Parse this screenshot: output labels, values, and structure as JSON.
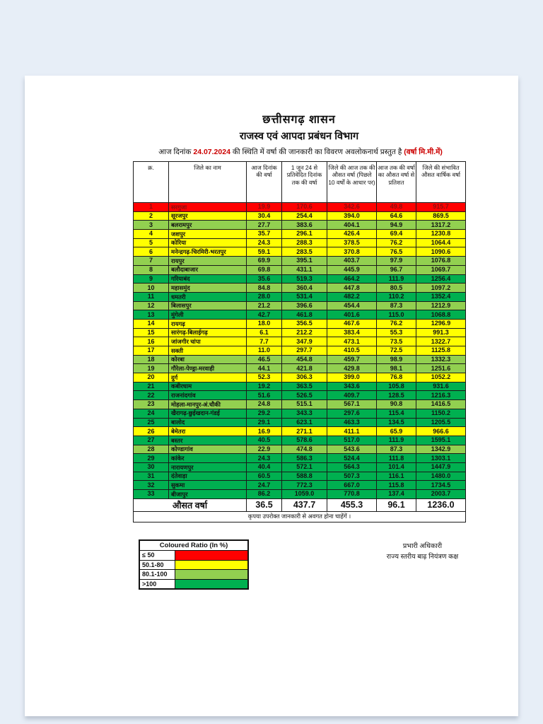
{
  "colors": {
    "red": "#ff0000",
    "yellow": "#ffff00",
    "lightgreen": "#92d050",
    "green": "#00b050",
    "accent_red": "#cc0000",
    "red_row_text": "#8b0e0e",
    "page_bg": "#ffffff",
    "viewer_bg": "#e7eef7"
  },
  "doc": {
    "title1": "छत्तीसगढ़ शासन",
    "title2": "राजस्व एवं आपदा प्रबंधन विभाग",
    "dateline": {
      "prefix": "आज दिनांक ",
      "date": "24.07.2024",
      "middle": " की स्थिति में वर्षा की जानकारी का विवरण अवलोकनार्थ प्रस्तुत है  ",
      "unit": "(वर्षा मि.मी.में)"
    }
  },
  "table": {
    "headers": [
      "क्र.",
      "जिले का नाम",
      "आज दिनांक की वर्षा",
      "1 जून 24 से प्रतिवेदित दिनांक तक की वर्षा",
      "जिले की आज तक की औसत वर्षा (पिछले 10 वर्षों के आधार पर)",
      "आज तक की वर्षा का औसत वर्षा से प्रतिशत",
      "जिले की संभावित औसत वार्षिक वर्षा"
    ],
    "rows": [
      {
        "sno": "1",
        "district": "सरगुजा",
        "today_rain": "19.9",
        "since_june1": "170.6",
        "avg_to_date": "342.6",
        "percent_of_avg": "49.8",
        "annual_avg": "915.7",
        "color": "red"
      },
      {
        "sno": "2",
        "district": "सूरजपुर",
        "today_rain": "30.4",
        "since_june1": "254.4",
        "avg_to_date": "394.0",
        "percent_of_avg": "64.6",
        "annual_avg": "869.5",
        "color": "yellow"
      },
      {
        "sno": "3",
        "district": "बलरामपुर",
        "today_rain": "27.7",
        "since_june1": "383.6",
        "avg_to_date": "404.1",
        "percent_of_avg": "94.9",
        "annual_avg": "1317.2",
        "color": "lightgreen"
      },
      {
        "sno": "4",
        "district": "जशपुर",
        "today_rain": "35.7",
        "since_june1": "296.1",
        "avg_to_date": "426.4",
        "percent_of_avg": "69.4",
        "annual_avg": "1230.8",
        "color": "yellow"
      },
      {
        "sno": "5",
        "district": "कोरिया",
        "today_rain": "24.3",
        "since_june1": "288.3",
        "avg_to_date": "378.5",
        "percent_of_avg": "76.2",
        "annual_avg": "1064.4",
        "color": "yellow"
      },
      {
        "sno": "6",
        "district": "मनेन्द्रगढ़-चिरमिरी-भरतपुर",
        "today_rain": "59.1",
        "since_june1": "283.5",
        "avg_to_date": "370.8",
        "percent_of_avg": "76.5",
        "annual_avg": "1090.6",
        "color": "yellow"
      },
      {
        "sno": "7",
        "district": "रायपुर",
        "today_rain": "69.9",
        "since_june1": "395.1",
        "avg_to_date": "403.7",
        "percent_of_avg": "97.9",
        "annual_avg": "1076.8",
        "color": "lightgreen"
      },
      {
        "sno": "8",
        "district": "बलौदाबाजार",
        "today_rain": "69.8",
        "since_june1": "431.1",
        "avg_to_date": "445.9",
        "percent_of_avg": "96.7",
        "annual_avg": "1069.7",
        "color": "lightgreen"
      },
      {
        "sno": "9",
        "district": "गरियाबंद",
        "today_rain": "35.6",
        "since_june1": "519.3",
        "avg_to_date": "464.2",
        "percent_of_avg": "111.9",
        "annual_avg": "1256.4",
        "color": "green"
      },
      {
        "sno": "10",
        "district": "महासमुंद",
        "today_rain": "84.8",
        "since_june1": "360.4",
        "avg_to_date": "447.8",
        "percent_of_avg": "80.5",
        "annual_avg": "1097.2",
        "color": "lightgreen"
      },
      {
        "sno": "11",
        "district": "धमतरी",
        "today_rain": "28.0",
        "since_june1": "531.4",
        "avg_to_date": "482.2",
        "percent_of_avg": "110.2",
        "annual_avg": "1352.4",
        "color": "green"
      },
      {
        "sno": "12",
        "district": "बिलासपुर",
        "today_rain": "21.2",
        "since_june1": "396.6",
        "avg_to_date": "454.4",
        "percent_of_avg": "87.3",
        "annual_avg": "1212.9",
        "color": "lightgreen"
      },
      {
        "sno": "13",
        "district": "मुंगेली",
        "today_rain": "42.7",
        "since_june1": "461.8",
        "avg_to_date": "401.6",
        "percent_of_avg": "115.0",
        "annual_avg": "1068.8",
        "color": "green"
      },
      {
        "sno": "14",
        "district": "रायगढ़",
        "today_rain": "18.0",
        "since_june1": "356.5",
        "avg_to_date": "467.6",
        "percent_of_avg": "76.2",
        "annual_avg": "1296.9",
        "color": "yellow"
      },
      {
        "sno": "15",
        "district": "सारंगढ़-बिलाईगढ़",
        "today_rain": "6.1",
        "since_june1": "212.2",
        "avg_to_date": "383.4",
        "percent_of_avg": "55.3",
        "annual_avg": "991.3",
        "color": "yellow"
      },
      {
        "sno": "16",
        "district": "जांजगीर चांपा",
        "today_rain": "7.7",
        "since_june1": "347.9",
        "avg_to_date": "473.1",
        "percent_of_avg": "73.5",
        "annual_avg": "1322.7",
        "color": "yellow"
      },
      {
        "sno": "17",
        "district": "सक्ती",
        "today_rain": "11.0",
        "since_june1": "297.7",
        "avg_to_date": "410.5",
        "percent_of_avg": "72.5",
        "annual_avg": "1125.8",
        "color": "yellow"
      },
      {
        "sno": "18",
        "district": "कोरबा",
        "today_rain": "46.5",
        "since_june1": "454.8",
        "avg_to_date": "459.7",
        "percent_of_avg": "98.9",
        "annual_avg": "1332.3",
        "color": "lightgreen"
      },
      {
        "sno": "19",
        "district": "गौरेला-पेण्ड्रा-मरवाही",
        "today_rain": "44.1",
        "since_june1": "421.8",
        "avg_to_date": "429.8",
        "percent_of_avg": "98.1",
        "annual_avg": "1251.6",
        "color": "lightgreen"
      },
      {
        "sno": "20",
        "district": "दुर्ग",
        "today_rain": "52.3",
        "since_june1": "306.3",
        "avg_to_date": "399.0",
        "percent_of_avg": "76.8",
        "annual_avg": "1052.2",
        "color": "yellow"
      },
      {
        "sno": "21",
        "district": "कबीरधाम",
        "today_rain": "19.2",
        "since_june1": "363.5",
        "avg_to_date": "343.6",
        "percent_of_avg": "105.8",
        "annual_avg": "931.6",
        "color": "green"
      },
      {
        "sno": "22",
        "district": "राजनांदगांव",
        "today_rain": "51.6",
        "since_june1": "526.5",
        "avg_to_date": "409.7",
        "percent_of_avg": "128.5",
        "annual_avg": "1216.3",
        "color": "green"
      },
      {
        "sno": "23",
        "district": "मोहला-मानपुर-अं.चौकी",
        "today_rain": "24.8",
        "since_june1": "515.1",
        "avg_to_date": "567.1",
        "percent_of_avg": "90.8",
        "annual_avg": "1416.5",
        "color": "lightgreen"
      },
      {
        "sno": "24",
        "district": "खैरागढ़-छुईखदान-गंडई",
        "today_rain": "29.2",
        "since_june1": "343.3",
        "avg_to_date": "297.6",
        "percent_of_avg": "115.4",
        "annual_avg": "1150.2",
        "color": "green"
      },
      {
        "sno": "25",
        "district": "बालोद",
        "today_rain": "29.1",
        "since_june1": "623.1",
        "avg_to_date": "463.3",
        "percent_of_avg": "134.5",
        "annual_avg": "1205.5",
        "color": "green"
      },
      {
        "sno": "26",
        "district": "बेमेतरा",
        "today_rain": "16.9",
        "since_june1": "271.1",
        "avg_to_date": "411.1",
        "percent_of_avg": "65.9",
        "annual_avg": "966.6",
        "color": "yellow"
      },
      {
        "sno": "27",
        "district": "बस्तर",
        "today_rain": "40.5",
        "since_june1": "578.6",
        "avg_to_date": "517.0",
        "percent_of_avg": "111.9",
        "annual_avg": "1595.1",
        "color": "green"
      },
      {
        "sno": "28",
        "district": "कोण्डागांव",
        "today_rain": "22.9",
        "since_june1": "474.8",
        "avg_to_date": "543.6",
        "percent_of_avg": "87.3",
        "annual_avg": "1342.9",
        "color": "lightgreen"
      },
      {
        "sno": "29",
        "district": "कांकेर",
        "today_rain": "24.3",
        "since_june1": "586.3",
        "avg_to_date": "524.4",
        "percent_of_avg": "111.8",
        "annual_avg": "1303.1",
        "color": "green"
      },
      {
        "sno": "30",
        "district": "नारायणपुर",
        "today_rain": "40.4",
        "since_june1": "572.1",
        "avg_to_date": "564.3",
        "percent_of_avg": "101.4",
        "annual_avg": "1447.9",
        "color": "green"
      },
      {
        "sno": "31",
        "district": "दंतेवाड़ा",
        "today_rain": "60.5",
        "since_june1": "588.8",
        "avg_to_date": "507.3",
        "percent_of_avg": "116.1",
        "annual_avg": "1480.0",
        "color": "green"
      },
      {
        "sno": "32",
        "district": "सुकमा",
        "today_rain": "24.7",
        "since_june1": "772.3",
        "avg_to_date": "667.0",
        "percent_of_avg": "115.8",
        "annual_avg": "1734.5",
        "color": "green"
      },
      {
        "sno": "33",
        "district": "बीजापुर",
        "today_rain": "86.2",
        "since_june1": "1059.0",
        "avg_to_date": "770.8",
        "percent_of_avg": "137.4",
        "annual_avg": "2003.7",
        "color": "green"
      }
    ],
    "average_row": {
      "label": "औसत वर्षा",
      "values": [
        "36.5",
        "437.7",
        "455.3",
        "96.1",
        "1236.0"
      ]
    },
    "note": "कृपया उपरोक्त जानकारी से अवगत होना चाहेंगें ।"
  },
  "legend": {
    "title": "Coloured Ratio (In %)",
    "items": [
      {
        "label": "≤ 50",
        "color": "red"
      },
      {
        "label": "50.1-80",
        "color": "yellow"
      },
      {
        "label": "80.1-100",
        "color": "lightgreen"
      },
      {
        "label": ">100",
        "color": "green"
      }
    ]
  },
  "signature": {
    "line1": "प्रभारी अधिकारी",
    "line2": "राज्य स्तरीय बाढ़ नियंत्रण कक्ष"
  }
}
